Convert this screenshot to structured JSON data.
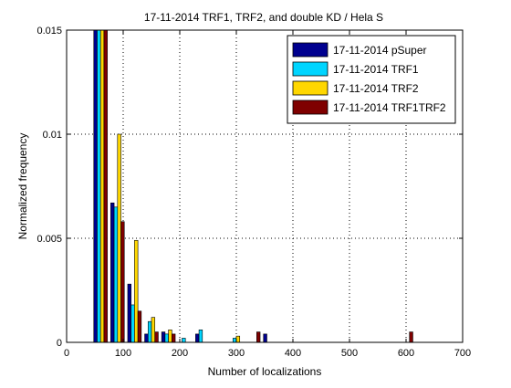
{
  "chart_data": {
    "type": "bar",
    "title": "17-11-2014 TRF1, TRF2, and double KD / Hela S",
    "xlabel": "Number of localizations",
    "ylabel": "Normalized frequency",
    "xlim": [
      0,
      700
    ],
    "ylim": [
      0,
      0.015
    ],
    "xticks": [
      "0",
      "100",
      "200",
      "300",
      "400",
      "500",
      "600",
      "700"
    ],
    "yticks": [
      "0",
      "0.005",
      "0.01",
      "0.015"
    ],
    "grid": true,
    "legend_position": "top-right",
    "bin_centers": [
      60,
      90,
      120,
      150,
      180,
      210,
      240,
      270,
      300,
      330,
      360,
      390,
      420,
      450,
      480,
      510,
      540,
      570,
      600
    ],
    "series": [
      {
        "name": "17-11-2014 pSuper",
        "color": "#00008f",
        "values": [
          0.015,
          0.0067,
          0.0028,
          0.0004,
          0.0005,
          0,
          0.0004,
          0,
          0,
          0,
          0.0004,
          0,
          0,
          0,
          0,
          0,
          0,
          0,
          0
        ]
      },
      {
        "name": "17-11-2014 TRF1",
        "color": "#00d5ff",
        "values": [
          0.015,
          0.0065,
          0.0018,
          0.001,
          0.0004,
          0.0002,
          0.0006,
          0,
          0.0002,
          0,
          0,
          0,
          0,
          0,
          0,
          0,
          0,
          0,
          0
        ]
      },
      {
        "name": "17-11-2014 TRF2",
        "color": "#ffd700",
        "values": [
          0.015,
          0.01,
          0.0049,
          0.0012,
          0.0006,
          0,
          0,
          0,
          0.0003,
          0,
          0,
          0,
          0,
          0,
          0,
          0,
          0,
          0,
          0
        ]
      },
      {
        "name": "17-11-2014 TRF1TRF2",
        "color": "#7f0000",
        "values": [
          0.015,
          0.0058,
          0.0015,
          0.0005,
          0.0004,
          0,
          0,
          0,
          0,
          0.0005,
          0,
          0,
          0,
          0,
          0,
          0,
          0,
          0,
          0.0005
        ]
      }
    ]
  }
}
